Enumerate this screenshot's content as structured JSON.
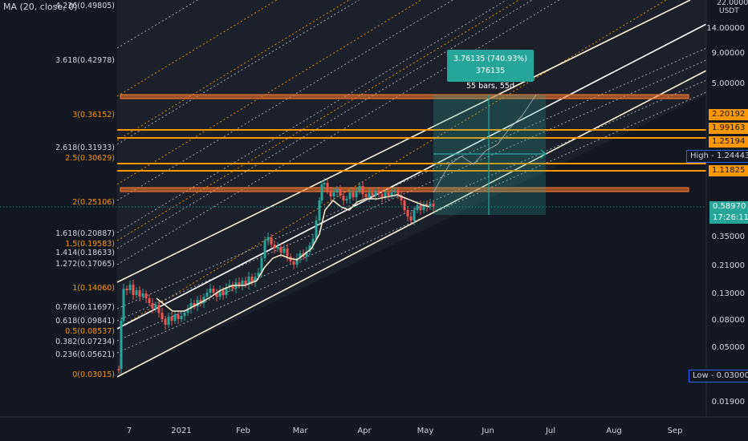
{
  "indicator": {
    "label": "MA (20, close, 0)"
  },
  "currency": "USDT",
  "fib_levels": [
    {
      "label": "4.236(0.49805)",
      "color": "white"
    },
    {
      "label": "3.618(0.42978)",
      "color": "white"
    },
    {
      "label": "3(0.36152)",
      "color": "orange"
    },
    {
      "label": "2.618(0.31933)",
      "color": "white"
    },
    {
      "label": "2.5(0.30629)",
      "color": "orange"
    },
    {
      "label": "2(0.25106)",
      "color": "orange"
    },
    {
      "label": "1.618(0.20887)",
      "color": "white"
    },
    {
      "label": "1.5(0.19583)",
      "color": "orange"
    },
    {
      "label": "1.414(0.18633)",
      "color": "white"
    },
    {
      "label": "1.272(0.17065)",
      "color": "white"
    },
    {
      "label": "1(0.14060)",
      "color": "orange"
    },
    {
      "label": "0.786(0.11697)",
      "color": "white"
    },
    {
      "label": "0.618(0.09841)",
      "color": "white"
    },
    {
      "label": "0.5(0.08537)",
      "color": "orange"
    },
    {
      "label": "0.382(0.07234)",
      "color": "white"
    },
    {
      "label": "0.236(0.05621)",
      "color": "white"
    },
    {
      "label": "0(0.03015)",
      "color": "orange"
    }
  ],
  "price_axis": [
    "22.00000",
    "14.00000",
    "9.00000",
    "5.00000",
    "0.35000",
    "0.21000",
    "0.13000",
    "0.08000",
    "0.05000",
    "0.01900"
  ],
  "time_axis": [
    "7",
    "2021",
    "Feb",
    "Mar",
    "Apr",
    "May",
    "Jun",
    "Jul",
    "Aug",
    "Sep"
  ],
  "right_tags": {
    "t1": "2.20192",
    "t2": "1.99163",
    "t3": "1.25194",
    "high": "High - 1.24443",
    "t4": "1.11825",
    "price": "0.58970",
    "time": "17:26:11",
    "low": "Low - 0.03000"
  },
  "measure": {
    "line1": "3.76135 (740.93%) 376135",
    "line2": "55 bars, 55d"
  },
  "colors": {
    "background": "#131722",
    "up": "#26a69a",
    "down": "#ef5350",
    "orange": "#ff9800",
    "white": "#ffffff"
  }
}
